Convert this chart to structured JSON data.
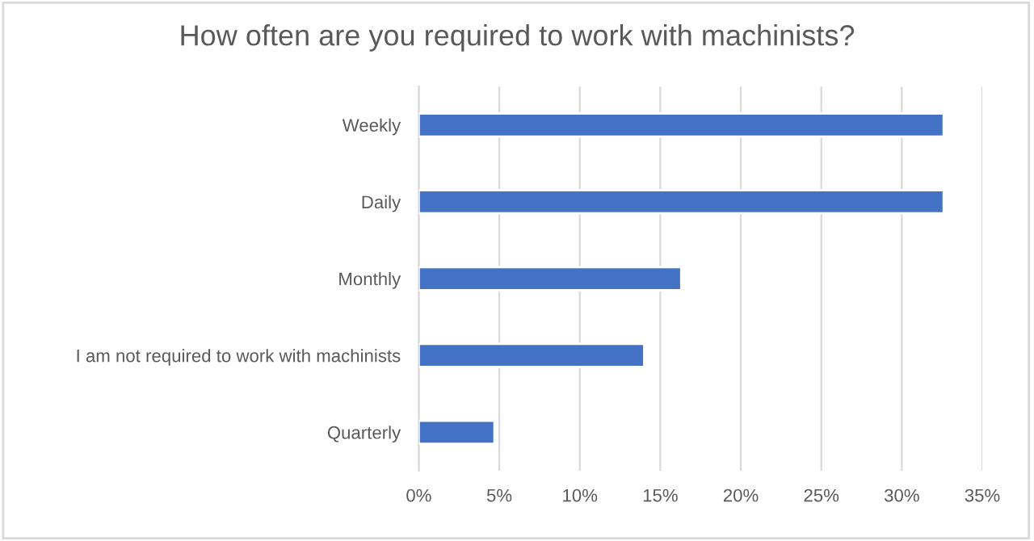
{
  "chart_data": {
    "type": "bar",
    "orientation": "horizontal",
    "title": "How often are you required to work with machinists?",
    "categories": [
      "Weekly",
      "Daily",
      "Monthly",
      "I am not required to work with machinists",
      "Quarterly"
    ],
    "values": [
      32.6,
      32.6,
      16.3,
      14.0,
      4.7
    ],
    "color": "#4472c4",
    "xlim": [
      0,
      35
    ],
    "xticks": [
      {
        "value": 0,
        "label": "0%"
      },
      {
        "value": 5,
        "label": "5%"
      },
      {
        "value": 10,
        "label": "10%"
      },
      {
        "value": 15,
        "label": "15%"
      },
      {
        "value": 20,
        "label": "20%"
      },
      {
        "value": 25,
        "label": "25%"
      },
      {
        "value": 30,
        "label": "30%"
      },
      {
        "value": 35,
        "label": "35%"
      }
    ],
    "grid": "x",
    "legend": false
  }
}
